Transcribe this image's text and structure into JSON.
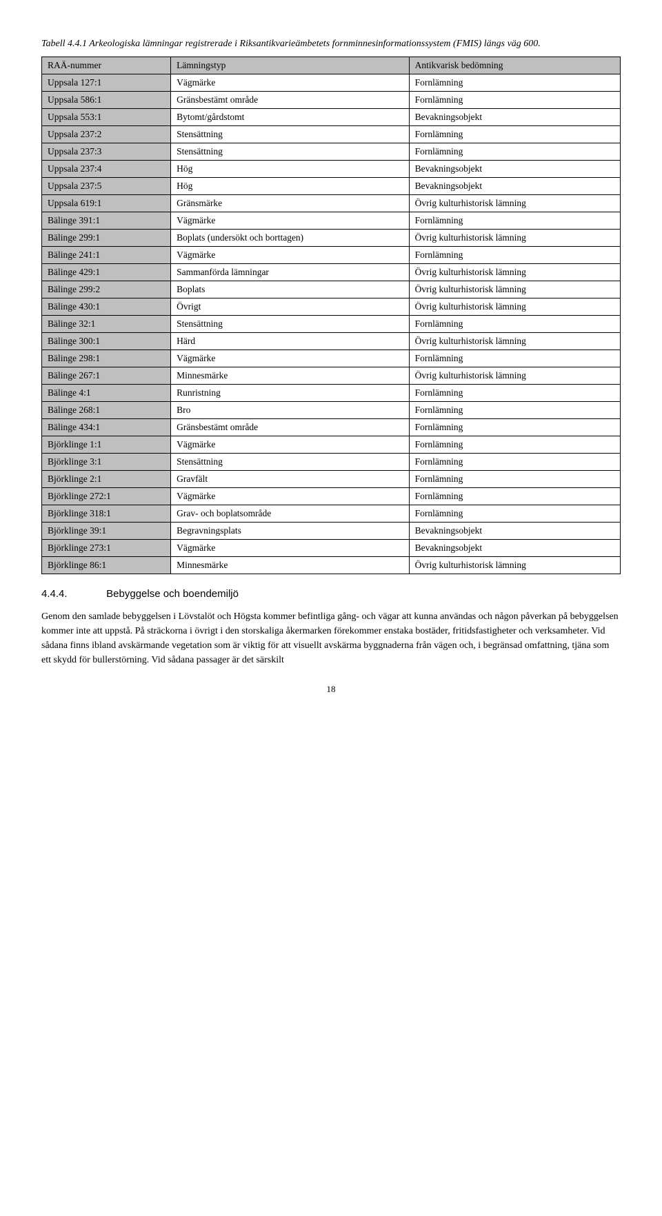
{
  "caption": "Tabell 4.4.1 Arkeologiska lämningar registrerade i Riksantikvarieämbetets fornminnesinformationssystem (FMIS) längs väg 600.",
  "table": {
    "columns": [
      "RAÄ-nummer",
      "Lämningstyp",
      "Antikvarisk bedömning"
    ],
    "rows": [
      [
        "Uppsala 127:1",
        "Vägmärke",
        "Fornlämning"
      ],
      [
        "Uppsala 586:1",
        "Gränsbestämt område",
        "Fornlämning"
      ],
      [
        "Uppsala 553:1",
        "Bytomt/gårdstomt",
        "Bevakningsobjekt"
      ],
      [
        "Uppsala 237:2",
        "Stensättning",
        "Fornlämning"
      ],
      [
        "Uppsala 237:3",
        "Stensättning",
        "Fornlämning"
      ],
      [
        "Uppsala 237:4",
        "Hög",
        "Bevakningsobjekt"
      ],
      [
        "Uppsala 237:5",
        "Hög",
        "Bevakningsobjekt"
      ],
      [
        "Uppsala 619:1",
        "Gränsmärke",
        "Övrig kulturhistorisk lämning"
      ],
      [
        "Bälinge 391:1",
        "Vägmärke",
        "Fornlämning"
      ],
      [
        "Bälinge 299:1",
        "Boplats (undersökt och borttagen)",
        "Övrig kulturhistorisk lämning"
      ],
      [
        "Bälinge 241:1",
        "Vägmärke",
        "Fornlämning"
      ],
      [
        "Bälinge 429:1",
        "Sammanförda lämningar",
        "Övrig kulturhistorisk lämning"
      ],
      [
        "Bälinge 299:2",
        "Boplats",
        "Övrig kulturhistorisk lämning"
      ],
      [
        "Bälinge 430:1",
        "Övrigt",
        "Övrig kulturhistorisk lämning"
      ],
      [
        "Bälinge 32:1",
        "Stensättning",
        "Fornlämning"
      ],
      [
        "Bälinge 300:1",
        "Härd",
        "Övrig kulturhistorisk lämning"
      ],
      [
        "Bälinge 298:1",
        "Vägmärke",
        "Fornlämning"
      ],
      [
        "Bälinge 267:1",
        "Minnesmärke",
        "Övrig kulturhistorisk lämning"
      ],
      [
        "Bälinge 4:1",
        "Runristning",
        "Fornlämning"
      ],
      [
        "Bälinge 268:1",
        "Bro",
        "Fornlämning"
      ],
      [
        "Bälinge 434:1",
        "Gränsbestämt område",
        "Fornlämning"
      ],
      [
        "Björklinge 1:1",
        "Vägmärke",
        "Fornlämning"
      ],
      [
        "Björklinge 3:1",
        "Stensättning",
        "Fornlämning"
      ],
      [
        "Björklinge 2:1",
        "Gravfält",
        "Fornlämning"
      ],
      [
        "Björklinge 272:1",
        "Vägmärke",
        "Fornlämning"
      ],
      [
        "Björklinge 318:1",
        "Grav- och boplatsområde",
        "Fornlämning"
      ],
      [
        "Björklinge 39:1",
        "Begravningsplats",
        "Bevakningsobjekt"
      ],
      [
        "Björklinge 273:1",
        "Vägmärke",
        "Bevakningsobjekt"
      ],
      [
        "Björklinge 86:1",
        "Minnesmärke",
        "Övrig kulturhistorisk lämning"
      ]
    ]
  },
  "section": {
    "number": "4.4.4.",
    "title": "Bebyggelse och boendemiljö"
  },
  "body": "Genom den samlade bebyggelsen i Lövstalöt och Högsta kommer befintliga gång- och vägar att kunna användas och någon påverkan på bebyggelsen kommer inte att uppstå. På sträckorna i övrigt i den storskaliga åkermarken förekommer enstaka bostäder, fritidsfastigheter och verksamheter. Vid sådana finns ibland avskärmande vegetation som är viktig för att visuellt avskärma byggnaderna från vägen och, i begränsad omfattning, tjäna som ett skydd för bullerstörning. Vid sådana passager är det särskilt",
  "pageNumber": "18"
}
